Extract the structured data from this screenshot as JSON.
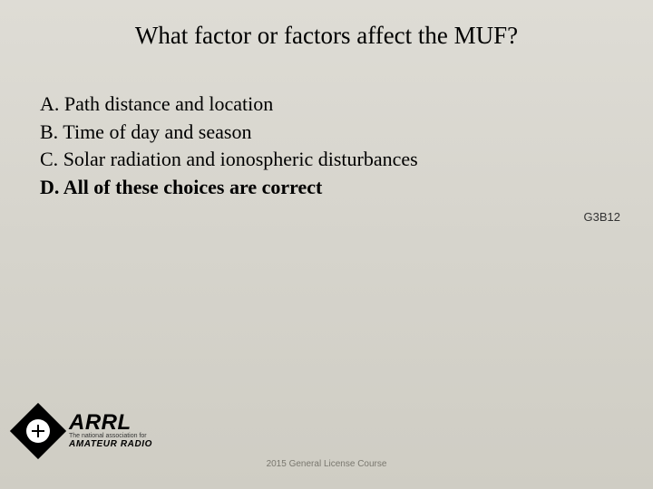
{
  "title": "What factor or factors affect the MUF?",
  "options": [
    {
      "letter": "A.",
      "text": "Path distance and location",
      "correct": false
    },
    {
      "letter": "B.",
      "text": "Time of day and season",
      "correct": false
    },
    {
      "letter": "C.",
      "text": "Solar radiation and ionospheric disturbances",
      "correct": false
    },
    {
      "letter": "D.",
      "text": "All of these choices are correct",
      "correct": true
    }
  ],
  "question_code": "G3B12",
  "logo": {
    "name": "ARRL",
    "tagline1": "The national association for",
    "tagline2": "AMATEUR RADIO"
  },
  "footer": "2015 General License Course",
  "colors": {
    "bg_top": "#dedcd5",
    "bg_bottom": "#cfcdc4",
    "text": "#000000",
    "footer_text": "#7a786f"
  }
}
